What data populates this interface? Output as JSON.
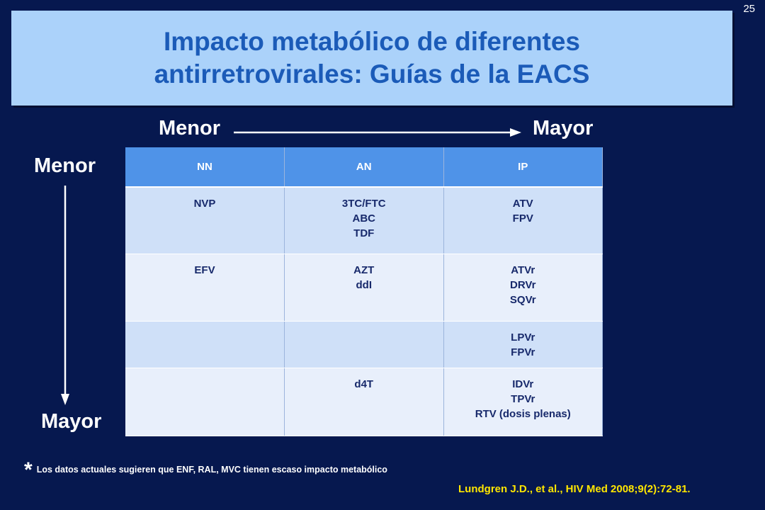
{
  "slide_number": "25",
  "title": {
    "line1": "Impacto metabólico de diferentes",
    "line2": "antirretrovirales: Guías de la EACS"
  },
  "axes": {
    "x_start": "Menor",
    "x_end": "Mayor",
    "y_start": "Menor",
    "y_end": "Mayor"
  },
  "table": {
    "headers": [
      "NN",
      "AN",
      "IP"
    ],
    "rows": [
      [
        [
          "NVP"
        ],
        [
          "3TC/FTC",
          "ABC",
          "TDF"
        ],
        [
          "ATV",
          "FPV"
        ]
      ],
      [
        [
          "EFV"
        ],
        [
          "AZT",
          "ddI"
        ],
        [
          "ATVr",
          "DRVr",
          "SQVr"
        ]
      ],
      [
        [],
        [],
        [
          "LPVr",
          "FPVr"
        ]
      ],
      [
        [],
        [
          "d4T"
        ],
        [
          "IDVr",
          "TPVr",
          "RTV (dosis plenas)"
        ]
      ]
    ]
  },
  "footnote": {
    "marker": "*",
    "text": "Los datos actuales sugieren que ENF, RAL, MVC tienen escaso impacto metabólico"
  },
  "citation": "Lundgren J.D., et al., HIV Med 2008;9(2):72-81."
}
